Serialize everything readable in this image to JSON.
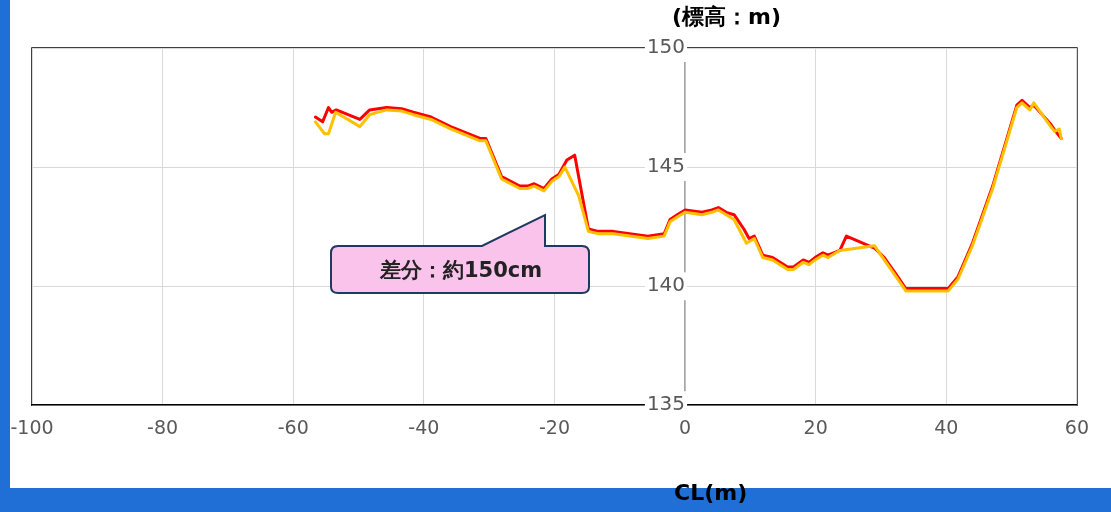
{
  "chart_data": {
    "type": "line",
    "xlabel": "CL(m)",
    "ylabel": "(標高：m)",
    "xlim": [
      -100,
      60
    ],
    "xticks": [
      -100,
      -80,
      -60,
      -40,
      -20,
      0,
      20,
      40,
      60
    ],
    "ylim": [
      135,
      150
    ],
    "yticks": [
      135,
      140,
      145,
      150
    ],
    "grid": true,
    "marker": "none",
    "line_style": "solid",
    "annotations": [
      "差分：約150cm"
    ],
    "series": [
      {
        "color": "#ffc000",
        "x": [
          -56.6,
          -55.2,
          -54.6,
          -53.5,
          -49.8,
          -48.3,
          -45.7,
          -43.4,
          -41.6,
          -38.9,
          -35.9,
          -31.4,
          -30.5,
          -28.1,
          -25.3,
          -24.1,
          -23.1,
          -21.6,
          -20.4,
          -19.3,
          -18.4,
          -16.3,
          -14.8,
          -13.3,
          -11.0,
          -5.7,
          -3.2,
          -2.3,
          -1.2,
          0,
          2.6,
          4.1,
          5.1,
          6.3,
          7.5,
          9.4,
          10.6,
          11.9,
          13.4,
          15.7,
          16.6,
          18.1,
          19.0,
          19.9,
          21.1,
          21.9,
          23.7,
          29.0,
          30.5,
          32.3,
          33.8,
          35.0,
          36.2,
          40.3,
          41.8,
          44.0,
          47.1,
          50.8,
          51.6,
          52.8,
          53.4,
          56.0,
          56.6,
          57.3,
          57.6
        ],
        "values": [
          146.9,
          146.4,
          146.4,
          147.3,
          146.7,
          147.2,
          147.4,
          147.35,
          147.2,
          147.0,
          146.6,
          146.1,
          146.1,
          144.5,
          144.1,
          144.1,
          144.2,
          144.0,
          144.4,
          144.6,
          145.0,
          143.8,
          142.3,
          142.2,
          142.2,
          142.0,
          142.1,
          142.7,
          142.9,
          143.1,
          143.0,
          143.1,
          143.2,
          143.0,
          142.8,
          141.8,
          142.0,
          141.2,
          141.1,
          140.7,
          140.7,
          141.0,
          140.9,
          141.1,
          141.3,
          141.2,
          141.5,
          141.7,
          141.1,
          140.4,
          139.8,
          139.8,
          139.8,
          139.8,
          140.3,
          141.7,
          144.1,
          147.5,
          147.7,
          147.4,
          147.7,
          146.7,
          146.5,
          146.6,
          146.2
        ]
      },
      {
        "color": "#ff0000",
        "x": [
          -56.6,
          -55.5,
          -54.6,
          -54.1,
          -53.4,
          -49.8,
          -48.3,
          -45.7,
          -43.4,
          -41.6,
          -38.9,
          -35.9,
          -31.4,
          -30.5,
          -28.1,
          -25.3,
          -24.1,
          -23.1,
          -21.6,
          -20.4,
          -19.3,
          -18.1,
          -16.9,
          -14.8,
          -13.3,
          -11.0,
          -5.7,
          -3.2,
          -2.3,
          -1.2,
          0,
          2.6,
          4.1,
          5.1,
          6.3,
          7.5,
          9.0,
          9.8,
          10.6,
          11.9,
          13.4,
          15.7,
          16.6,
          18.1,
          19.0,
          19.9,
          21.1,
          21.9,
          23.7,
          24.7,
          29.0,
          30.5,
          32.3,
          33.8,
          35.0,
          36.2,
          40.3,
          41.8,
          44.0,
          47.1,
          50.8,
          51.6,
          52.8,
          53.4,
          56.0,
          56.6,
          57.6
        ],
        "values": [
          147.1,
          146.9,
          147.5,
          147.3,
          147.4,
          147.0,
          147.4,
          147.5,
          147.45,
          147.3,
          147.1,
          146.7,
          146.2,
          146.2,
          144.6,
          144.2,
          144.2,
          144.3,
          144.1,
          144.5,
          144.7,
          145.3,
          145.5,
          142.4,
          142.3,
          142.3,
          142.1,
          142.2,
          142.8,
          143.0,
          143.2,
          143.1,
          143.2,
          143.3,
          143.1,
          143.0,
          142.4,
          142.0,
          142.1,
          141.3,
          141.2,
          140.8,
          140.8,
          141.1,
          141.0,
          141.2,
          141.4,
          141.3,
          141.5,
          142.1,
          141.6,
          141.2,
          140.5,
          139.9,
          139.9,
          139.9,
          139.9,
          140.4,
          141.8,
          144.2,
          147.6,
          147.8,
          147.5,
          147.6,
          146.8,
          146.55,
          146.2
        ]
      }
    ]
  }
}
